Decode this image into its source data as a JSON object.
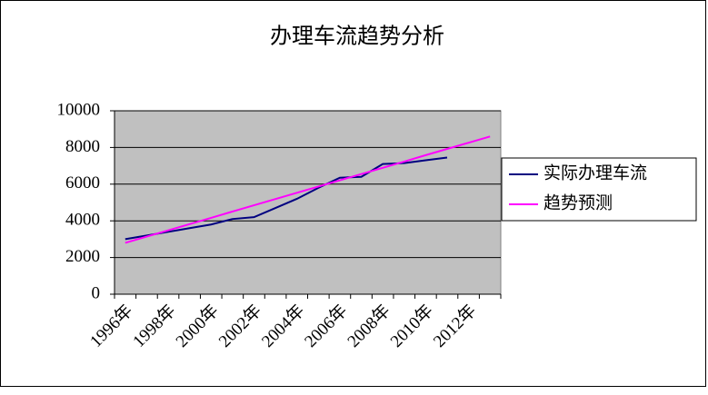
{
  "chart_data": {
    "type": "line",
    "title": "办理车流趋势分析",
    "categories": [
      "1996年",
      null,
      "1998年",
      null,
      "2000年",
      null,
      "2002年",
      null,
      "2004年",
      null,
      "2006年",
      null,
      "2008年",
      null,
      "2010年",
      null,
      "2012年",
      null
    ],
    "series": [
      {
        "name": "实际办理车流",
        "color": "#000080",
        "values": [
          3000,
          3200,
          3400,
          3600,
          3800,
          4100,
          4200,
          4700,
          5200,
          5800,
          6350,
          6400,
          7100,
          7150,
          7300,
          7450,
          null,
          null
        ]
      },
      {
        "name": "趋势预测",
        "color": "#ff00ff",
        "values": [
          2800,
          3140,
          3480,
          3820,
          4160,
          4510,
          4850,
          5190,
          5530,
          5870,
          6210,
          6550,
          6890,
          7230,
          7580,
          7920,
          8260,
          8600
        ]
      }
    ],
    "ylim": [
      0,
      10000
    ],
    "yticks": [
      0,
      2000,
      4000,
      6000,
      8000,
      10000
    ],
    "grid": true,
    "legend": "right"
  }
}
